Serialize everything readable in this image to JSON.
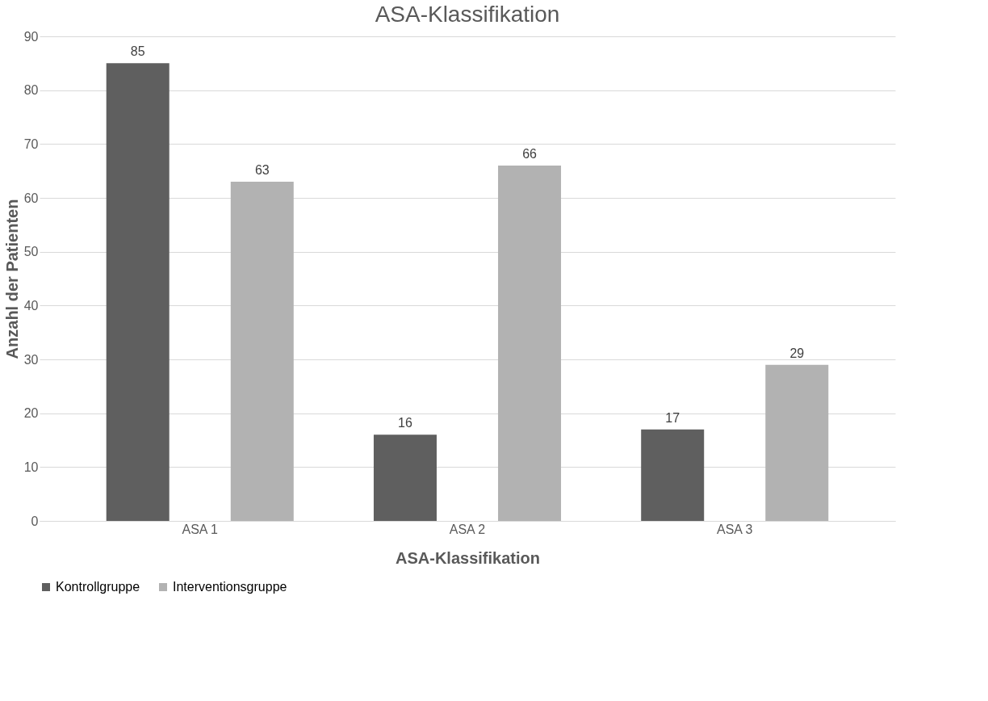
{
  "chart_data": {
    "type": "bar",
    "title": "ASA-Klassifikation",
    "xlabel": "ASA-Klassifikation",
    "ylabel": "Anzahl der Patienten",
    "categories": [
      "ASA 1",
      "ASA 2",
      "ASA 3"
    ],
    "series": [
      {
        "name": "Kontrollgruppe",
        "color": "#5f5f5f",
        "values": [
          85,
          16,
          17
        ]
      },
      {
        "name": "Interventionsgruppe",
        "color": "#b2b2b2",
        "values": [
          63,
          66,
          29
        ]
      }
    ],
    "ylim": [
      0,
      90
    ],
    "yticks": [
      0,
      10,
      20,
      30,
      40,
      50,
      60,
      70,
      80,
      90
    ],
    "grid": "y",
    "legend": "bottom",
    "data_labels": true
  }
}
